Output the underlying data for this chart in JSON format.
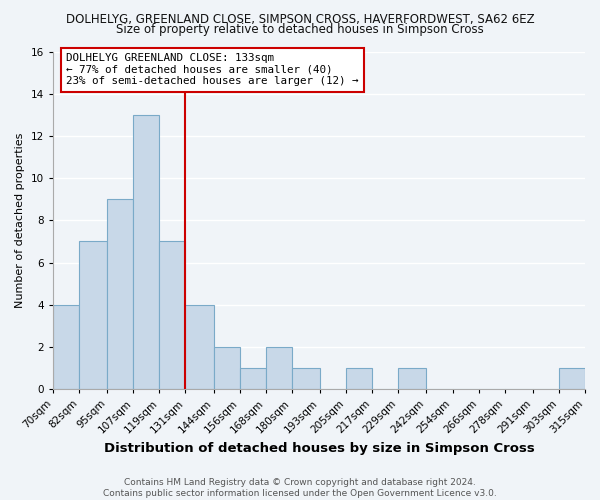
{
  "title": "DOLHELYG, GREENLAND CLOSE, SIMPSON CROSS, HAVERFORDWEST, SA62 6EZ",
  "subtitle": "Size of property relative to detached houses in Simpson Cross",
  "xlabel": "Distribution of detached houses by size in Simpson Cross",
  "ylabel": "Number of detached properties",
  "footer_line1": "Contains HM Land Registry data © Crown copyright and database right 2024.",
  "footer_line2": "Contains public sector information licensed under the Open Government Licence v3.0.",
  "annotation_line1": "DOLHELYG GREENLAND CLOSE: 133sqm",
  "annotation_line2": "← 77% of detached houses are smaller (40)",
  "annotation_line3": "23% of semi-detached houses are larger (12) →",
  "vline_x": 131,
  "bin_edges": [
    70,
    82,
    95,
    107,
    119,
    131,
    144,
    156,
    168,
    180,
    193,
    205,
    217,
    229,
    242,
    254,
    266,
    278,
    291,
    303,
    315
  ],
  "bin_counts": [
    4,
    7,
    9,
    13,
    7,
    4,
    2,
    1,
    2,
    1,
    0,
    1,
    0,
    1,
    0,
    0,
    0,
    0,
    0,
    1
  ],
  "bar_color": "#c8d8e8",
  "bar_edgecolor": "#7aaac8",
  "vline_color": "#cc0000",
  "bg_color": "#f0f4f8",
  "grid_color": "#ffffff",
  "ylim": [
    0,
    16
  ],
  "yticks": [
    0,
    2,
    4,
    6,
    8,
    10,
    12,
    14,
    16
  ],
  "title_fontsize": 8.5,
  "subtitle_fontsize": 8.5,
  "xlabel_fontsize": 9.5,
  "ylabel_fontsize": 8,
  "tick_fontsize": 7.5,
  "footer_fontsize": 6.5,
  "ann_fontsize": 7.8
}
